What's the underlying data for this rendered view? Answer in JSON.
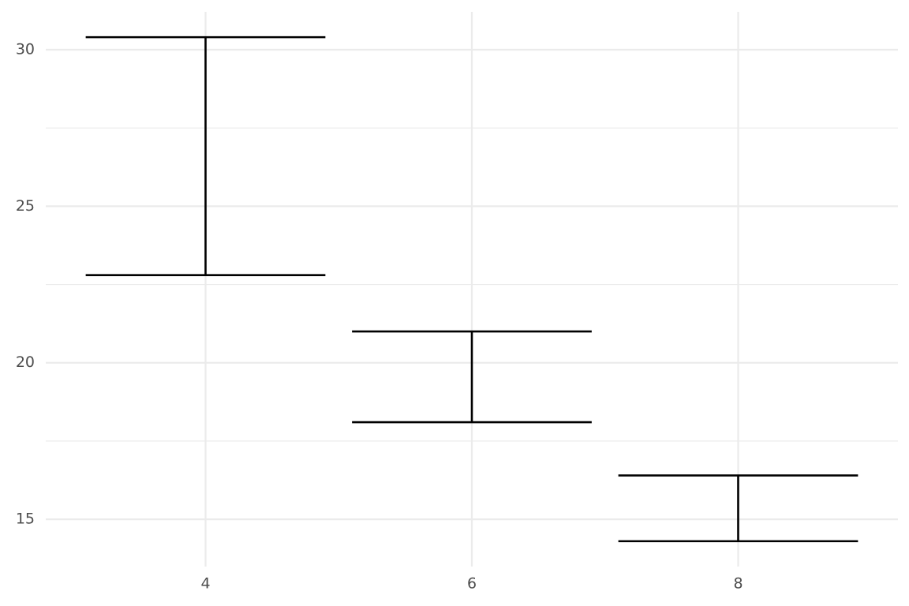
{
  "chart_data": {
    "type": "errorbar",
    "categories": [
      "4",
      "6",
      "8"
    ],
    "series": [
      {
        "color": "#000000",
        "ymin": [
          22.8,
          18.1,
          14.3
        ],
        "ymax": [
          30.4,
          21.0,
          16.4
        ]
      }
    ],
    "errorbar_width": 0.9,
    "ylim": [
      13.49,
      31.21
    ],
    "yticks": [
      15,
      20,
      25,
      30
    ],
    "yminor": [
      17.5,
      22.5,
      27.5
    ],
    "grid": true
  }
}
